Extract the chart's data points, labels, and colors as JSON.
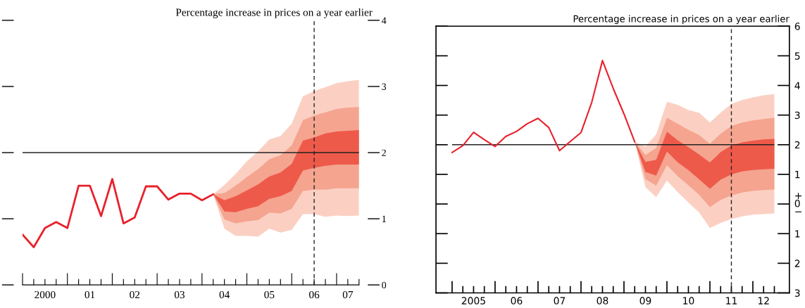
{
  "chart_data": [
    {
      "type": "line",
      "ylabel": "Percentage increase in prices on a year earlier",
      "ylim": [
        0,
        4
      ],
      "yticks": [
        0,
        1,
        2,
        3,
        4
      ],
      "categories": [
        null,
        null,
        "2000",
        null,
        null,
        null,
        "01",
        null,
        null,
        null,
        "02",
        null,
        null,
        null,
        "03",
        null,
        null,
        null,
        "04",
        null,
        null,
        null,
        "05",
        null,
        null,
        null,
        "06",
        null,
        null,
        "07",
        null
      ],
      "series": [
        {
          "color": "#e8202a",
          "values": [
            0.76,
            0.57,
            0.86,
            0.95,
            0.86,
            1.5,
            1.5,
            1.04,
            1.6,
            0.93,
            1.02,
            1.49,
            1.49,
            1.29,
            1.38,
            1.38,
            1.28,
            1.37,
            null,
            null,
            null,
            null,
            null,
            null,
            null,
            null,
            null,
            null,
            null,
            null,
            null
          ]
        },
        {
          "type": "area",
          "color": "#fbd0c3",
          "values": [
            null,
            null,
            null,
            null,
            null,
            null,
            null,
            null,
            null,
            null,
            null,
            null,
            null,
            null,
            null,
            null,
            null,
            null,
            null,
            null,
            null,
            null,
            null,
            null,
            null,
            null,
            null,
            null,
            null,
            null,
            null
          ],
          "lower": [
            null,
            null,
            null,
            null,
            null,
            null,
            null,
            null,
            null,
            null,
            null,
            null,
            null,
            null,
            null,
            null,
            null,
            1.37,
            0.85,
            0.74,
            0.74,
            0.73,
            0.85,
            0.79,
            0.83,
            1.07,
            1.07,
            1.03,
            1.05,
            1.04,
            1.05
          ],
          "upper": [
            null,
            null,
            null,
            null,
            null,
            null,
            null,
            null,
            null,
            null,
            null,
            null,
            null,
            null,
            null,
            null,
            null,
            1.37,
            1.51,
            1.68,
            1.87,
            2.02,
            2.2,
            2.25,
            2.44,
            2.85,
            2.93,
            2.99,
            3.05,
            3.08,
            3.1
          ]
        },
        {
          "type": "area",
          "color": "#f5a490",
          "values": [
            null,
            null,
            null,
            null,
            null,
            null,
            null,
            null,
            null,
            null,
            null,
            null,
            null,
            null,
            null,
            null,
            null,
            null,
            null,
            null,
            null,
            null,
            null,
            null,
            null,
            null,
            null,
            null,
            null,
            null,
            null
          ],
          "lower": [
            null,
            null,
            null,
            null,
            null,
            null,
            null,
            null,
            null,
            null,
            null,
            null,
            null,
            null,
            null,
            null,
            null,
            1.37,
            0.99,
            0.93,
            0.96,
            0.98,
            1.09,
            1.08,
            1.15,
            1.42,
            1.44,
            1.44,
            1.46,
            1.46,
            1.46
          ],
          "upper": [
            null,
            null,
            null,
            null,
            null,
            null,
            null,
            null,
            null,
            null,
            null,
            null,
            null,
            null,
            null,
            null,
            null,
            1.37,
            1.39,
            1.5,
            1.63,
            1.75,
            1.9,
            1.96,
            2.11,
            2.49,
            2.56,
            2.61,
            2.66,
            2.68,
            2.69
          ]
        },
        {
          "type": "area",
          "color": "#ee5a4a",
          "values": [
            null,
            null,
            null,
            null,
            null,
            null,
            null,
            null,
            null,
            null,
            null,
            null,
            null,
            null,
            null,
            null,
            null,
            null,
            null,
            null,
            null,
            null,
            null,
            null,
            null,
            null,
            null,
            null,
            null,
            null,
            null
          ],
          "lower": [
            null,
            null,
            null,
            null,
            null,
            null,
            null,
            null,
            null,
            null,
            null,
            null,
            null,
            null,
            null,
            null,
            null,
            1.37,
            1.11,
            1.1,
            1.15,
            1.19,
            1.3,
            1.34,
            1.42,
            1.73,
            1.77,
            1.8,
            1.82,
            1.82,
            1.82
          ],
          "upper": [
            null,
            null,
            null,
            null,
            null,
            null,
            null,
            null,
            null,
            null,
            null,
            null,
            null,
            null,
            null,
            null,
            null,
            1.37,
            1.28,
            1.34,
            1.43,
            1.52,
            1.64,
            1.7,
            1.83,
            2.18,
            2.23,
            2.29,
            2.32,
            2.33,
            2.34
          ]
        }
      ],
      "ref_lines": [
        {
          "axis": "y",
          "value": 2,
          "color": "#222222",
          "line_style": "solid"
        },
        {
          "axis": "x",
          "value": "06",
          "color": "#222222",
          "line_style": "dashed"
        }
      ]
    },
    {
      "type": "line",
      "ylabel": "Percentage increase in prices on a year earlier",
      "ylim": [
        -3,
        6
      ],
      "yticks": [
        {
          "value": -3,
          "label": "3"
        },
        {
          "value": -2,
          "label": "2"
        },
        {
          "value": -1,
          "label": "1"
        },
        {
          "value": 0,
          "label": "+\n0\n−"
        },
        1,
        2,
        3,
        4,
        5,
        6
      ],
      "categories": [
        null,
        null,
        "2005",
        null,
        null,
        null,
        "06",
        null,
        null,
        null,
        "07",
        null,
        null,
        null,
        "08",
        null,
        null,
        null,
        "09",
        null,
        null,
        null,
        "10",
        null,
        null,
        null,
        "11",
        null,
        null,
        "12",
        null
      ],
      "series": [
        {
          "color": "#e8202a",
          "values": [
            1.74,
            1.97,
            2.42,
            2.17,
            1.94,
            2.28,
            2.45,
            2.71,
            2.89,
            2.58,
            1.8,
            2.11,
            2.41,
            3.43,
            4.84,
            3.9,
            3.04,
            2.1,
            null,
            null,
            null,
            null,
            null,
            null,
            null,
            null,
            null,
            null,
            null,
            null,
            null
          ]
        },
        {
          "type": "area",
          "color": "#fbd0c3",
          "values": [
            null,
            null,
            null,
            null,
            null,
            null,
            null,
            null,
            null,
            null,
            null,
            null,
            null,
            null,
            null,
            null,
            null,
            null,
            null,
            null,
            null,
            null,
            null,
            null,
            null,
            null,
            null,
            null,
            null,
            null,
            null
          ],
          "lower": [
            null,
            null,
            null,
            null,
            null,
            null,
            null,
            null,
            null,
            null,
            null,
            null,
            null,
            null,
            null,
            null,
            null,
            2.1,
            0.57,
            0.23,
            0.79,
            0.4,
            0.05,
            -0.29,
            -0.81,
            -0.64,
            -0.51,
            -0.42,
            -0.36,
            -0.34,
            -0.32
          ],
          "upper": [
            null,
            null,
            null,
            null,
            null,
            null,
            null,
            null,
            null,
            null,
            null,
            null,
            null,
            null,
            null,
            null,
            null,
            2.1,
            1.94,
            2.35,
            3.45,
            3.35,
            3.17,
            3.08,
            2.75,
            3.08,
            3.38,
            3.51,
            3.6,
            3.67,
            3.71
          ]
        },
        {
          "type": "area",
          "color": "#f5a490",
          "values": [
            null,
            null,
            null,
            null,
            null,
            null,
            null,
            null,
            null,
            null,
            null,
            null,
            null,
            null,
            null,
            null,
            null,
            null,
            null,
            null,
            null,
            null,
            null,
            null,
            null,
            null,
            null,
            null,
            null,
            null,
            null
          ],
          "lower": [
            null,
            null,
            null,
            null,
            null,
            null,
            null,
            null,
            null,
            null,
            null,
            null,
            null,
            null,
            null,
            null,
            null,
            2.1,
            0.84,
            0.62,
            1.31,
            0.94,
            0.63,
            0.31,
            -0.11,
            0.14,
            0.29,
            0.39,
            0.44,
            0.47,
            0.49
          ],
          "upper": [
            null,
            null,
            null,
            null,
            null,
            null,
            null,
            null,
            null,
            null,
            null,
            null,
            null,
            null,
            null,
            null,
            null,
            2.1,
            1.66,
            1.89,
            2.91,
            2.71,
            2.5,
            2.33,
            2.03,
            2.37,
            2.63,
            2.75,
            2.82,
            2.87,
            2.91
          ]
        },
        {
          "type": "area",
          "color": "#ee5a4a",
          "values": [
            null,
            null,
            null,
            null,
            null,
            null,
            null,
            null,
            null,
            null,
            null,
            null,
            null,
            null,
            null,
            null,
            null,
            null,
            null,
            null,
            null,
            null,
            null,
            null,
            null,
            null,
            null,
            null,
            null,
            null,
            null
          ],
          "lower": [
            null,
            null,
            null,
            null,
            null,
            null,
            null,
            null,
            null,
            null,
            null,
            null,
            null,
            null,
            null,
            null,
            null,
            2.1,
            1.08,
            0.96,
            1.77,
            1.41,
            1.14,
            0.83,
            0.51,
            0.82,
            1.0,
            1.1,
            1.15,
            1.17,
            1.19
          ],
          "upper": [
            null,
            null,
            null,
            null,
            null,
            null,
            null,
            null,
            null,
            null,
            null,
            null,
            null,
            null,
            null,
            null,
            null,
            2.1,
            1.42,
            1.49,
            2.44,
            2.15,
            1.92,
            1.67,
            1.4,
            1.75,
            1.97,
            2.08,
            2.14,
            2.18,
            2.2
          ]
        }
      ],
      "ref_lines": [
        {
          "axis": "y",
          "value": 2,
          "color": "#222222",
          "line_style": "solid"
        },
        {
          "axis": "x",
          "value": "11",
          "color": "#222222",
          "line_style": "dashed"
        }
      ]
    }
  ]
}
